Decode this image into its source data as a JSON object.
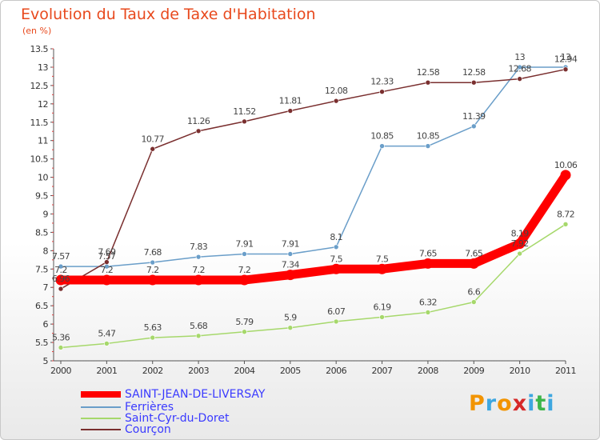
{
  "title": "Evolution du Taux de Taxe d'Habitation",
  "subtitle": "(en %)",
  "logo": "Proxiti",
  "logo_colors": [
    "#f29400",
    "#3ea7e0",
    "#f29400",
    "#d62828",
    "#3ea7e0",
    "#3cb54a",
    "#3ea7e0"
  ],
  "chart_data": {
    "type": "line",
    "title": "Evolution du Taux de Taxe d'Habitation",
    "ylabel": "(en %)",
    "xlabel": "",
    "categories": [
      "2000",
      "2001",
      "2002",
      "2003",
      "2004",
      "2005",
      "2006",
      "2007",
      "2008",
      "2009",
      "2010",
      "2011"
    ],
    "ylim": [
      5,
      13.5
    ],
    "yticks": [
      "5",
      "5.5",
      "6",
      "6.5",
      "7",
      "7.5",
      "8",
      "8.5",
      "9",
      "9.5",
      "10",
      "10.5",
      "11",
      "11.5",
      "12",
      "12.5",
      "13",
      "13.5"
    ],
    "grid": false,
    "legend_position": "bottom-left",
    "series": [
      {
        "name": "SAINT-JEAN-DE-LIVERSAY",
        "color": "#ff0000",
        "width": "thick",
        "values": [
          7.2,
          7.2,
          7.2,
          7.2,
          7.2,
          7.34,
          7.5,
          7.5,
          7.65,
          7.65,
          8.19,
          10.06
        ],
        "labels": [
          "7.2",
          "7.2",
          "7.2",
          "7.2",
          "7.2",
          "7.34",
          "7.5",
          "7.5",
          "7.65",
          "7.65",
          "8.19",
          "10.06"
        ]
      },
      {
        "name": "Ferrières",
        "color": "#6a9ec9",
        "width": "thin",
        "values": [
          7.57,
          7.57,
          7.68,
          7.83,
          7.91,
          7.91,
          8.1,
          10.85,
          10.85,
          11.39,
          13,
          13
        ],
        "labels": [
          "7.57",
          "7.57",
          "7.68",
          "7.83",
          "7.91",
          "7.91",
          "8.1",
          "10.85",
          "10.85",
          "11.39",
          "13",
          "13"
        ]
      },
      {
        "name": "Saint-Cyr-du-Doret",
        "color": "#a6d86b",
        "width": "thin",
        "values": [
          5.36,
          5.47,
          5.63,
          5.68,
          5.79,
          5.9,
          6.07,
          6.19,
          6.32,
          6.6,
          7.92,
          8.72
        ],
        "labels": [
          "5.36",
          "5.47",
          "5.63",
          "5.68",
          "5.79",
          "5.9",
          "6.07",
          "6.19",
          "6.32",
          "6.6",
          "7.92",
          "8.72"
        ]
      },
      {
        "name": "Courçon",
        "color": "#7a2f2f",
        "width": "thin",
        "values": [
          6.96,
          7.69,
          10.77,
          11.26,
          11.52,
          11.81,
          12.08,
          12.33,
          12.58,
          12.58,
          12.68,
          12.94
        ],
        "labels": [
          "6.96",
          "7.69",
          "10.77",
          "11.26",
          "11.52",
          "11.81",
          "12.08",
          "12.33",
          "12.58",
          "12.58",
          "12.68",
          "12.94"
        ]
      }
    ]
  }
}
